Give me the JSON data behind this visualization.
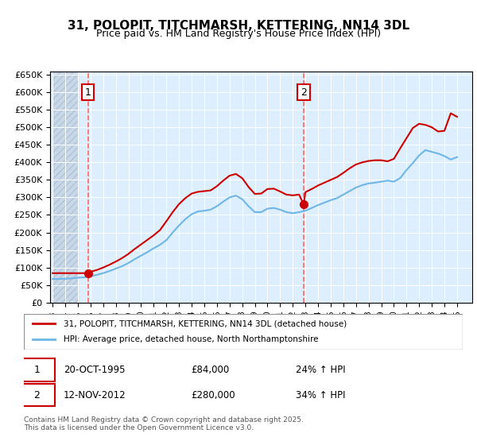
{
  "title": "31, POLOPIT, TITCHMARSH, KETTERING, NN14 3DL",
  "subtitle": "Price paid vs. HM Land Registry's House Price Index (HPI)",
  "legend_line1": "31, POLOPIT, TITCHMARSH, KETTERING, NN14 3DL (detached house)",
  "legend_line2": "HPI: Average price, detached house, North Northamptonshire",
  "annotation1_label": "1",
  "annotation1_date": "20-OCT-1995",
  "annotation1_price": "£84,000",
  "annotation1_hpi": "24% ↑ HPI",
  "annotation2_label": "2",
  "annotation2_date": "12-NOV-2012",
  "annotation2_price": "£280,000",
  "annotation2_hpi": "34% ↑ HPI",
  "footer": "Contains HM Land Registry data © Crown copyright and database right 2025.\nThis data is licensed under the Open Government Licence v3.0.",
  "xmin": 1993,
  "xmax": 2026,
  "ymin": 0,
  "ymax": 650000,
  "yticks": [
    0,
    50000,
    100000,
    150000,
    200000,
    250000,
    300000,
    350000,
    400000,
    450000,
    500000,
    550000,
    600000,
    650000
  ],
  "hpi_color": "#6eb6e8",
  "price_color": "#cc0000",
  "annotation_vline_color": "#ff6666",
  "background_plot": "#ddeeff",
  "background_hatch": "#c8d8e8",
  "sale1_x": 1995.8,
  "sale1_y": 84000,
  "sale2_x": 2012.87,
  "sale2_y": 280000,
  "hpi_data_x": [
    1993,
    1993.5,
    1994,
    1994.5,
    1995,
    1995.5,
    1996,
    1996.5,
    1997,
    1997.5,
    1998,
    1998.5,
    1999,
    1999.5,
    2000,
    2000.5,
    2001,
    2001.5,
    2002,
    2002.5,
    2003,
    2003.5,
    2004,
    2004.5,
    2005,
    2005.5,
    2006,
    2006.5,
    2007,
    2007.5,
    2008,
    2008.5,
    2009,
    2009.5,
    2010,
    2010.5,
    2011,
    2011.5,
    2012,
    2012.5,
    2013,
    2013.5,
    2014,
    2014.5,
    2015,
    2015.5,
    2016,
    2016.5,
    2017,
    2017.5,
    2018,
    2018.5,
    2019,
    2019.5,
    2020,
    2020.5,
    2021,
    2021.5,
    2022,
    2022.5,
    2023,
    2023.5,
    2024,
    2024.5,
    2025
  ],
  "hpi_data_y": [
    67000,
    67500,
    68000,
    69000,
    71000,
    72000,
    75000,
    79000,
    84000,
    90000,
    97000,
    104000,
    113000,
    124000,
    134000,
    144000,
    155000,
    165000,
    178000,
    200000,
    220000,
    238000,
    252000,
    260000,
    262000,
    265000,
    275000,
    288000,
    300000,
    305000,
    295000,
    275000,
    258000,
    258000,
    268000,
    270000,
    265000,
    258000,
    255000,
    258000,
    262000,
    270000,
    278000,
    285000,
    292000,
    298000,
    308000,
    318000,
    328000,
    335000,
    340000,
    342000,
    345000,
    348000,
    345000,
    355000,
    378000,
    398000,
    420000,
    435000,
    430000,
    425000,
    418000,
    408000,
    415000
  ],
  "price_data_x": [
    1993,
    1993.5,
    1994,
    1994.5,
    1995,
    1995.5,
    1995.8,
    1996,
    1996.5,
    1997,
    1997.5,
    1998,
    1998.5,
    1999,
    1999.5,
    2000,
    2000.5,
    2001,
    2001.5,
    2002,
    2002.5,
    2003,
    2003.5,
    2004,
    2004.5,
    2005,
    2005.5,
    2006,
    2006.5,
    2007,
    2007.5,
    2008,
    2008.5,
    2009,
    2009.5,
    2010,
    2010.5,
    2011,
    2011.5,
    2012,
    2012.5,
    2012.87,
    2013,
    2013.5,
    2014,
    2014.5,
    2015,
    2015.5,
    2016,
    2016.5,
    2017,
    2017.5,
    2018,
    2018.5,
    2019,
    2019.5,
    2020,
    2020.5,
    2021,
    2021.5,
    2022,
    2022.5,
    2023,
    2023.5,
    2024,
    2024.5,
    2025
  ],
  "price_data_y": [
    84000,
    84000,
    84000,
    84000,
    84000,
    84000,
    84000,
    88000,
    93000,
    100000,
    108000,
    117000,
    127000,
    139000,
    153000,
    166000,
    179000,
    192000,
    207000,
    232000,
    258000,
    281000,
    298000,
    311000,
    316000,
    318000,
    320000,
    332000,
    348000,
    362000,
    367000,
    355000,
    330000,
    310000,
    311000,
    324000,
    325000,
    317000,
    308000,
    306000,
    308000,
    280000,
    315000,
    324000,
    334000,
    342000,
    350000,
    358000,
    370000,
    383000,
    394000,
    400000,
    404000,
    406000,
    406000,
    403000,
    410000,
    440000,
    469000,
    498000,
    510000,
    507000,
    500000,
    488000,
    490000,
    540000,
    530000
  ]
}
